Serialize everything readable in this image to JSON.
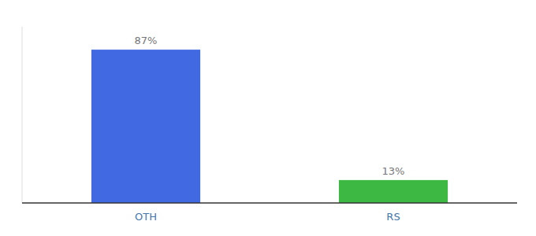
{
  "chart_data": {
    "type": "bar",
    "categories": [
      "OTH",
      "RS"
    ],
    "values": [
      87,
      13
    ],
    "value_labels": [
      "87%",
      "13%"
    ],
    "colors": [
      "#4169e1",
      "#3cb843"
    ],
    "ylim": [
      0,
      100
    ],
    "data_labels": true,
    "tick_labels": "x"
  }
}
